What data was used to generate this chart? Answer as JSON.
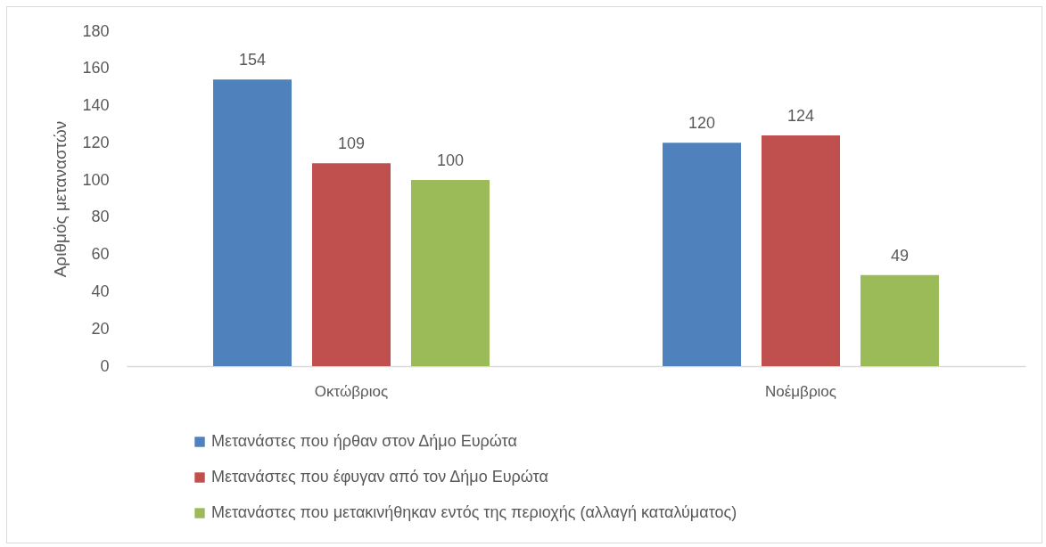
{
  "chart_data": {
    "type": "bar",
    "ylabel": "Αριθμός μεταναστών",
    "categories": [
      "Οκτώβριος",
      "Νοέμβριος"
    ],
    "series": [
      {
        "name": "Μετανάστες που ήρθαν στον Δήμο Ευρώτα",
        "color": "#4f81bd",
        "values": [
          154,
          120
        ]
      },
      {
        "name": "Μετανάστες που έφυγαν από τον Δήμο Ευρώτα",
        "color": "#c0504d",
        "values": [
          109,
          124
        ]
      },
      {
        "name": "Μετανάστες που μετακινήθηκαν εντός της περιοχής (αλλαγή καταλύματος)",
        "color": "#9bbb59",
        "values": [
          100,
          49
        ]
      }
    ],
    "ylim": [
      0,
      180
    ],
    "yticks": [
      0,
      20,
      40,
      60,
      80,
      100,
      120,
      140,
      160,
      180
    ],
    "data_labels": true,
    "legend": "bottom"
  }
}
